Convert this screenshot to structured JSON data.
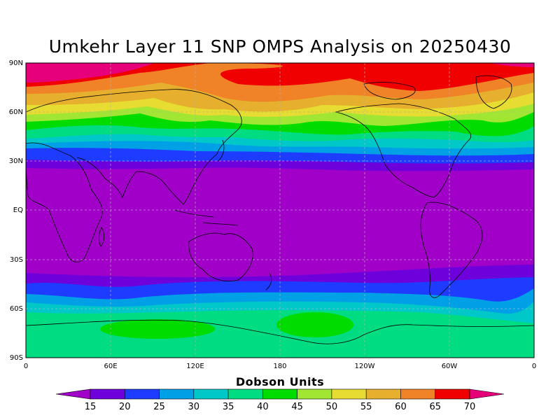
{
  "title": "Umkehr Layer 11 SNP OMPS Analysis on 20250430",
  "y_ticks": [
    "90N",
    "60N",
    "30N",
    "EQ",
    "30S",
    "60S",
    "90S"
  ],
  "x_ticks": [
    "0",
    "60E",
    "120E",
    "180",
    "120W",
    "60W",
    "0"
  ],
  "colorbar": {
    "title": "Dobson Units",
    "labels": [
      "15",
      "20",
      "25",
      "30",
      "35",
      "40",
      "45",
      "50",
      "55",
      "60",
      "65",
      "70"
    ],
    "colors": [
      "#a000c8",
      "#6e00dc",
      "#1e3cff",
      "#00a0e6",
      "#00c8c8",
      "#00dc82",
      "#00dc00",
      "#a0e632",
      "#e6dc32",
      "#e6af2d",
      "#f08228",
      "#f00000",
      "#e6007a"
    ]
  }
}
